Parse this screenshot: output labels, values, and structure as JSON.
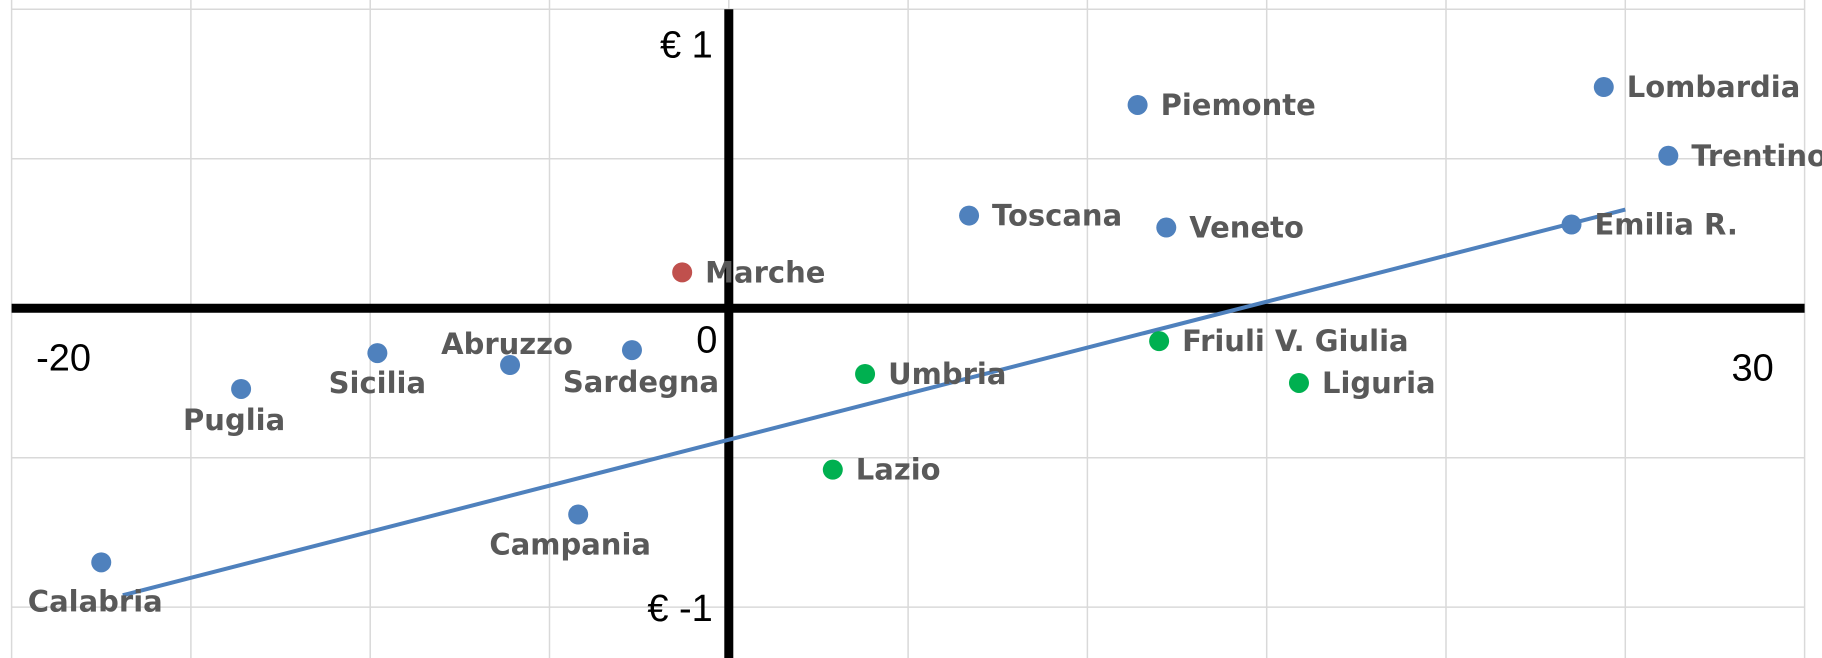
{
  "chart_data": {
    "type": "scatter",
    "labels": [
      "Lombardia",
      "Trentino",
      "Piemonte",
      "Toscana",
      "Veneto",
      "Emilia R.",
      "Marche",
      "Friuli V. Giulia",
      "Umbria",
      "Liguria",
      "Lazio",
      "Abruzzo",
      "Sardegna",
      "Sicilia",
      "Puglia",
      "Campania",
      "Calabria"
    ],
    "x": [
      24.4,
      26.2,
      11.4,
      6.7,
      12.2,
      23.5,
      -1.3,
      12.0,
      3.8,
      15.9,
      2.9,
      -6.1,
      -2.7,
      -9.8,
      -13.6,
      -4.2,
      -17.5
    ],
    "y": [
      0.74,
      0.51,
      0.68,
      0.31,
      0.27,
      0.28,
      0.12,
      -0.11,
      -0.22,
      -0.25,
      -0.54,
      -0.19,
      -0.14,
      -0.15,
      -0.27,
      -0.69,
      -0.85
    ],
    "colors": [
      "#4f81bd",
      "#4f81bd",
      "#4f81bd",
      "#4f81bd",
      "#4f81bd",
      "#4f81bd",
      "#c0504d",
      "#00b050",
      "#00b050",
      "#00b050",
      "#00b050",
      "#4f81bd",
      "#4f81bd",
      "#4f81bd",
      "#4f81bd",
      "#4f81bd",
      "#4f81bd"
    ],
    "trendline": {
      "x": [
        -16.9,
        25.0
      ],
      "y": [
        -0.96,
        0.33
      ],
      "color": "#4f81bd"
    },
    "xlim": [
      -20,
      30
    ],
    "ylim": [
      -1.17,
      1
    ],
    "xticks": [
      -20,
      0,
      30
    ],
    "yticks": [
      {
        "value": 1,
        "label": "€ 1"
      },
      {
        "value": -1,
        "label": "€ -1"
      }
    ],
    "xgrid": [
      -20,
      -15,
      -10,
      -5,
      0,
      5,
      10,
      15,
      20,
      25,
      30
    ],
    "ygrid": [
      -1,
      -0.5,
      0,
      0.5,
      1
    ],
    "grid": true
  }
}
